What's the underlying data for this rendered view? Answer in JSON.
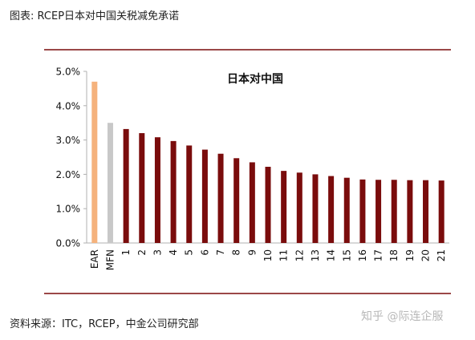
{
  "header": {
    "title": "图表: RCEP日本对中国关税减免承诺"
  },
  "footer": {
    "source": "资料来源：ITC，RCEP，中金公司研究部"
  },
  "watermark": {
    "text": "知乎 @际连企服"
  },
  "chart_data": {
    "type": "bar",
    "title": "日本对中国",
    "xlabel": "",
    "ylabel": "",
    "ylim": [
      0,
      5
    ],
    "yticks": [
      "0.0%",
      "1.0%",
      "2.0%",
      "3.0%",
      "4.0%",
      "5.0%"
    ],
    "grid": false,
    "legend": "none",
    "categories": [
      "EAR",
      "MFN",
      "1",
      "2",
      "3",
      "4",
      "5",
      "6",
      "7",
      "8",
      "9",
      "10",
      "11",
      "12",
      "13",
      "14",
      "15",
      "16",
      "17",
      "18",
      "19",
      "20",
      "21"
    ],
    "values": [
      4.7,
      3.5,
      3.32,
      3.2,
      3.08,
      2.97,
      2.84,
      2.72,
      2.6,
      2.47,
      2.35,
      2.22,
      2.1,
      2.05,
      2.0,
      1.95,
      1.9,
      1.85,
      1.84,
      1.84,
      1.83,
      1.83,
      1.82
    ],
    "value_unit": "%",
    "colors": [
      "#f5b27c",
      "#c8c8c8",
      "#7a0c0c",
      "#7a0c0c",
      "#7a0c0c",
      "#7a0c0c",
      "#7a0c0c",
      "#7a0c0c",
      "#7a0c0c",
      "#7a0c0c",
      "#7a0c0c",
      "#7a0c0c",
      "#7a0c0c",
      "#7a0c0c",
      "#7a0c0c",
      "#7a0c0c",
      "#7a0c0c",
      "#7a0c0c",
      "#7a0c0c",
      "#7a0c0c",
      "#7a0c0c",
      "#7a0c0c",
      "#7a0c0c"
    ],
    "frame_color": "#7a0c0c",
    "axis_color": "#b0b0b0"
  }
}
